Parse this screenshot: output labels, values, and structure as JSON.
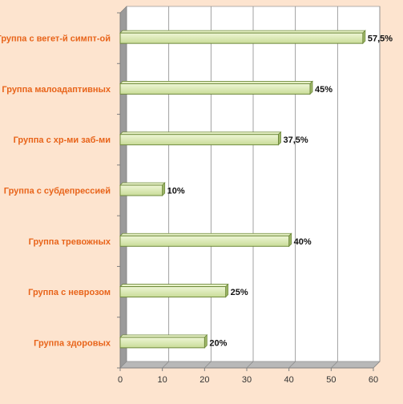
{
  "chart_data": {
    "type": "bar",
    "orientation": "horizontal",
    "title": "",
    "xlabel": "",
    "ylabel": "",
    "categories": [
      "Группа с вегет-й симпт-ой",
      "Группа малоадаптивных",
      "Группа с хр-ми заб-ми",
      "Группа с субдепрессией",
      "Группа тревожных",
      "Группа с неврозом",
      "Группа здоровых"
    ],
    "values": [
      57.5,
      45,
      37.5,
      10,
      40,
      25,
      20
    ],
    "data_labels": [
      "57,5%",
      "45%",
      "37,5%",
      "10%",
      "40%",
      "25%",
      "20%"
    ],
    "xlim": [
      0,
      60
    ],
    "x_ticks": [
      0,
      10,
      20,
      30,
      40,
      50,
      60
    ],
    "grid": true,
    "legend": "none",
    "colors": {
      "bar_fill": "#d9e8b0",
      "bar_edge": "#6f8a3c",
      "category_text": "#e8641a",
      "plot_background": "#ffffff",
      "page_background": "#fde4cf"
    }
  }
}
